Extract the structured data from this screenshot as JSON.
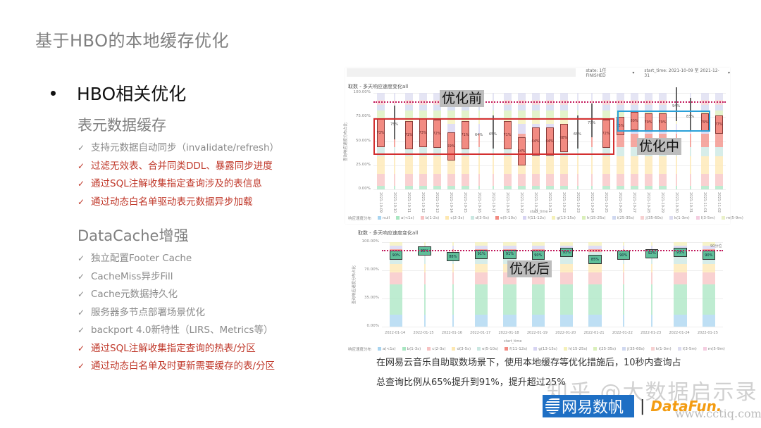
{
  "slide": {
    "title": "基于HBO的本地缓存优化",
    "main_bullet": "HBO相关优化"
  },
  "sections": [
    {
      "title": "表元数据缓存",
      "items": [
        {
          "text": "支持元数据自动同步（invalidate/refresh）",
          "color": "gray"
        },
        {
          "text": "过滤无效表、合并同类DDL、暴露同步进度",
          "color": "red"
        },
        {
          "text": "通过SQL注解收集指定查询涉及的表信息",
          "color": "red"
        },
        {
          "text": "通过动态白名单驱动表元数据异步加载",
          "color": "red"
        }
      ]
    },
    {
      "title": "DataCache增强",
      "items": [
        {
          "text": "独立配置Footer Cache",
          "color": "gray"
        },
        {
          "text": "CacheMiss异步Fill",
          "color": "gray"
        },
        {
          "text": "Cache元数据持久化",
          "color": "gray"
        },
        {
          "text": "服务器多节点部署场景优化",
          "color": "gray"
        },
        {
          "text": "backport 4.0新特性（LIRS、Metrics等）",
          "color": "gray"
        },
        {
          "text": "通过SQL注解收集指定查询的热表/分区",
          "color": "red"
        },
        {
          "text": "通过动态白名单及时更新需要缓存的表/分区",
          "color": "red"
        }
      ]
    }
  ],
  "check_icon": "✓",
  "dashboard": {
    "filters": {
      "state": "state: 1任 FINISHED",
      "start_time": "start_time: 2021-10-09 至 2021-12-31",
      "dropdown_icon": "▾"
    }
  },
  "chart_data": [
    {
      "type": "bar",
      "title": "取数 - 多天响应速度变化all",
      "xlabel": "start_time",
      "ylabel": "查询响应速度分布占比",
      "ylim": [
        0,
        100
      ],
      "yticks": [
        "100.00%",
        "75.00%",
        "50.00%",
        "25.00%",
        "0.00%"
      ],
      "stacked": true,
      "annotations": [
        "优化前",
        "优化中"
      ],
      "reference_line": 91,
      "legend_title": "响应速度分布",
      "legend": [
        "null",
        "a(<1s)",
        "b(1-2s)",
        "c(2-3s)",
        "d(3-5s)",
        "e(5-10s)",
        "f(11-12s)",
        "g(13-15s)",
        "h(15-25s)",
        "i(25-35s)",
        "j(35-60s)",
        "k(1-3m)",
        "l(3-5m)",
        "m(5-9m)"
      ],
      "categories": [
        "2021-10-09",
        "2021-10-10",
        "2021-10-11",
        "2021-10-12",
        "2021-10-13",
        "2021-10-14",
        "2021-10-15",
        "2021-10-16",
        "2021-10-17",
        "2021-10-18",
        "2021-10-19",
        "2021-10-20",
        "2021-10-21",
        "2021-10-22",
        "2021-10-23",
        "2021-10-24",
        "2021-10-25",
        "2021-10-26",
        "2021-10-27",
        "2021-10-28",
        "2021-10-29",
        "2021-10-30",
        "2021-10-31",
        "2021-11-01",
        "2021-11-02"
      ],
      "highlight_values": [
        73,
        75,
        71,
        73,
        72,
        59,
        71,
        64,
        65,
        71,
        54,
        64,
        64,
        68,
        65,
        77,
        72,
        75,
        80,
        79,
        79,
        94,
        83,
        79,
        77
      ],
      "highlight_kind": [
        "box",
        "line",
        "box",
        "box",
        "box",
        "box",
        "box",
        "none",
        "line",
        "box",
        "box",
        "box",
        "box",
        "box",
        "line",
        "line",
        "box",
        "box",
        "box",
        "box",
        "box",
        "line",
        "line",
        "box",
        "box"
      ]
    },
    {
      "type": "bar",
      "title": "取数 - 多天响应速度变化all",
      "xlabel": "start_time",
      "ylabel": "查询响应速度分布占比",
      "ylim": [
        0,
        100
      ],
      "yticks": [
        "100.00%",
        "70.00%",
        "35.00%",
        "0.00%"
      ],
      "stacked": true,
      "annotations": [
        "优化后"
      ],
      "reference_line": 91,
      "reference_label": "90分位",
      "legend_title": "响应速度分布",
      "legend": [
        "a(<1s)",
        "b(1-3s)",
        "c(2-3s)",
        "d(3-5s)",
        "e(5-10s)",
        "f(11-12s)",
        "g(13-15s)",
        "h(15-25s)",
        "i(25-35s)",
        "j(35-60s)",
        "k(1-3m)",
        "l(3-5m)",
        "m(5-9m)"
      ],
      "categories": [
        "2022-01-14",
        "2022-01-15",
        "2022-01-16",
        "2022-01-17",
        "2022-01-18",
        "2022-01-19",
        "2022-01-20",
        "2022-01-21",
        "2022-01-22",
        "2022-01-23",
        "2022-01-24",
        "2022-01-25"
      ],
      "highlight_values": [
        90,
        95,
        88,
        91,
        91,
        90,
        93,
        85,
        90,
        92,
        93,
        90
      ],
      "series": [
        {
          "name": "a(<1s)",
          "values": [
            11,
            0,
            0,
            18,
            20,
            17,
            17,
            10,
            0,
            0,
            17,
            12
          ]
        },
        {
          "name": "b(1-3s)",
          "values": [
            47,
            0,
            0,
            50,
            50,
            52,
            43,
            39,
            0,
            0,
            50,
            44
          ]
        },
        {
          "name": "c(2-3s)",
          "values": [
            56,
            0,
            0,
            64,
            65,
            66,
            60,
            52,
            0,
            0,
            64,
            62
          ]
        },
        {
          "name": "d(3-5s)",
          "values": [
            79,
            0,
            0,
            80,
            78,
            79,
            79,
            75,
            0,
            0,
            80,
            77
          ]
        }
      ]
    }
  ],
  "summary": {
    "line1": "在网易云音乐自助取数场景下，使用本地缓存等优化措施后，10秒内查询占",
    "line2": "总查询比例从65%提升到91%，提升超过25%"
  },
  "footer": {
    "netease_logo": "网易数帆",
    "separator": "|",
    "datafun_logo": "DataFun.",
    "watermark": "知乎 @大数据启示录",
    "watermark_url": "www.cctiq.com"
  }
}
